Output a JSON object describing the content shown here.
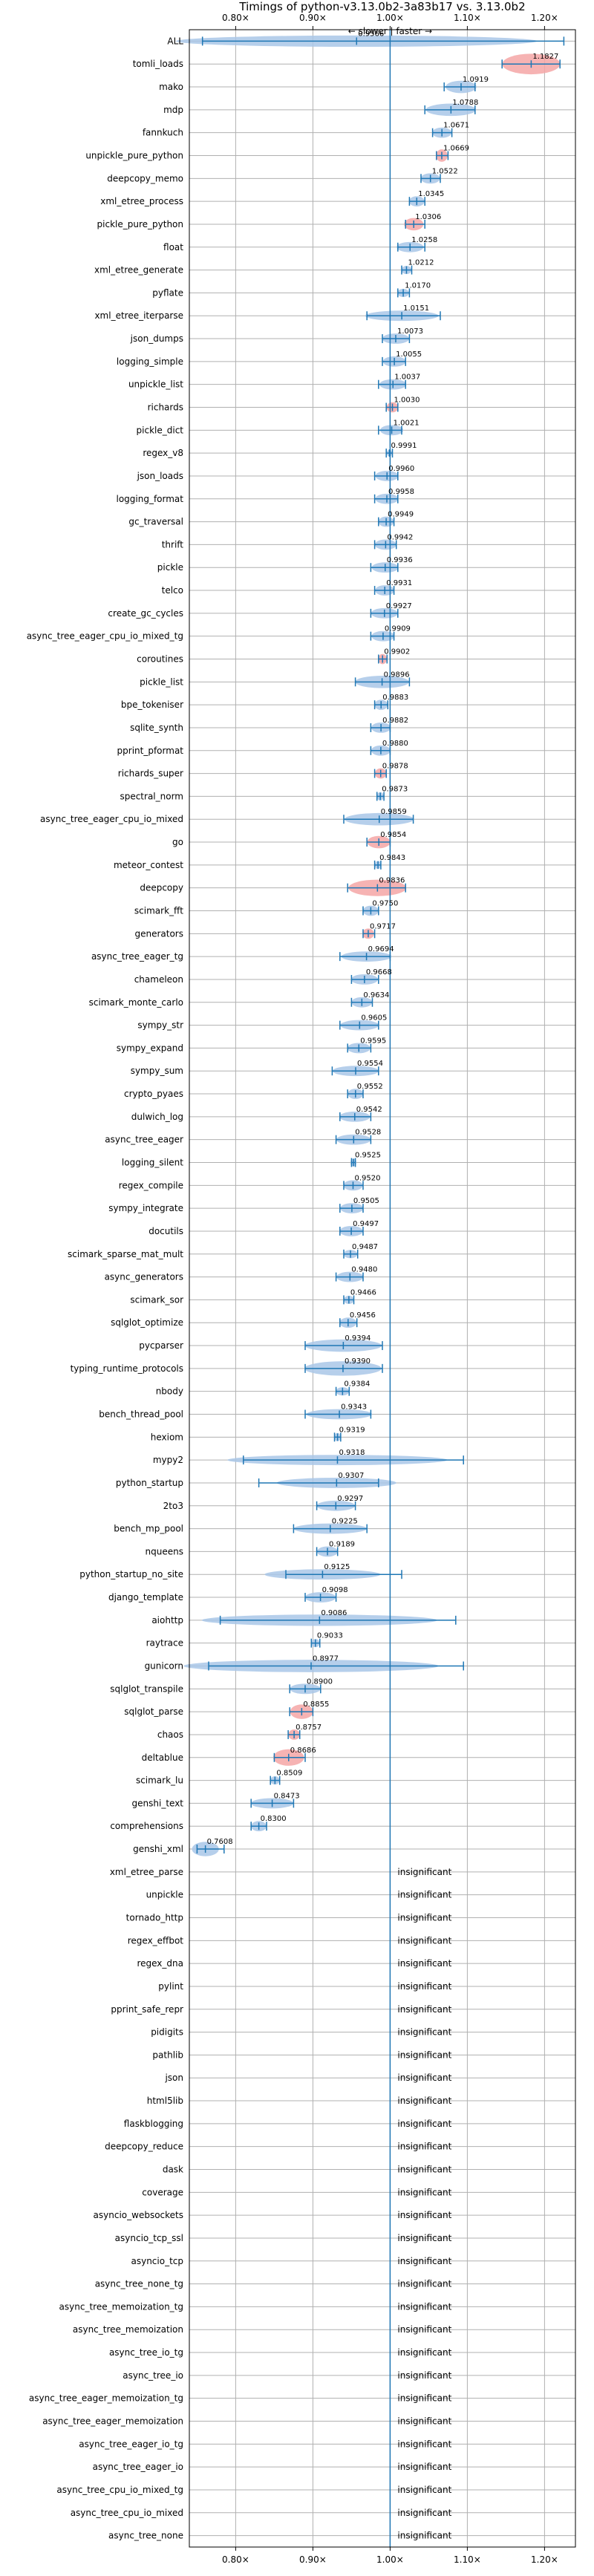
{
  "chart_data": {
    "type": "violin",
    "title": "Timings of python-v3.13.0b2-3a83b17 vs. 3.13.0b2",
    "direction_label": "← slower | faster →",
    "xlim": [
      0.74,
      1.24
    ],
    "xticks": [
      {
        "value": 0.8,
        "label": "0.80×"
      },
      {
        "value": 0.9,
        "label": "0.90×"
      },
      {
        "value": 1.0,
        "label": "1.00×"
      },
      {
        "value": 1.1,
        "label": "1.10×"
      },
      {
        "value": 1.2,
        "label": "1.20×"
      }
    ],
    "grid": true,
    "colors": {
      "faster": "#a9c7e8",
      "slower": "#f4a6a6",
      "errorbar": "#1f77b4",
      "refline": "#1f77b4",
      "grid": "#b0b0b0"
    },
    "insignificant_label": "insignificant",
    "rows": [
      {
        "name": "ALL",
        "value": 0.9566,
        "label": "0.9566",
        "lo": 0.757,
        "hi": 1.225,
        "w": 0.55,
        "slow": false
      },
      {
        "name": "tomli_loads",
        "value": 1.1827,
        "label": "1.1827",
        "lo": 1.145,
        "hi": 1.22,
        "w": 1.0,
        "slow": true
      },
      {
        "name": "mako",
        "value": 1.0919,
        "label": "1.0919",
        "lo": 1.07,
        "hi": 1.11,
        "w": 0.6,
        "slow": false
      },
      {
        "name": "mdp",
        "value": 1.0788,
        "label": "1.0788",
        "lo": 1.045,
        "hi": 1.11,
        "w": 0.6,
        "slow": false
      },
      {
        "name": "fannkuch",
        "value": 1.0671,
        "label": "1.0671",
        "lo": 1.055,
        "hi": 1.08,
        "w": 0.5,
        "slow": false
      },
      {
        "name": "unpickle_pure_python",
        "value": 1.0669,
        "label": "1.0669",
        "lo": 1.06,
        "hi": 1.075,
        "w": 0.6,
        "slow": true
      },
      {
        "name": "deepcopy_memo",
        "value": 1.0522,
        "label": "1.0522",
        "lo": 1.04,
        "hi": 1.065,
        "w": 0.5,
        "slow": false
      },
      {
        "name": "xml_etree_process",
        "value": 1.0345,
        "label": "1.0345",
        "lo": 1.025,
        "hi": 1.045,
        "w": 0.5,
        "slow": false
      },
      {
        "name": "pickle_pure_python",
        "value": 1.0306,
        "label": "1.0306",
        "lo": 1.02,
        "hi": 1.045,
        "w": 0.6,
        "slow": true
      },
      {
        "name": "float",
        "value": 1.0258,
        "label": "1.0258",
        "lo": 1.01,
        "hi": 1.045,
        "w": 0.5,
        "slow": false
      },
      {
        "name": "xml_etree_generate",
        "value": 1.0212,
        "label": "1.0212",
        "lo": 1.015,
        "hi": 1.028,
        "w": 0.4,
        "slow": false
      },
      {
        "name": "pyflate",
        "value": 1.017,
        "label": "1.0170",
        "lo": 1.01,
        "hi": 1.025,
        "w": 0.4,
        "slow": false
      },
      {
        "name": "xml_etree_iterparse",
        "value": 1.0151,
        "label": "1.0151",
        "lo": 0.97,
        "hi": 1.065,
        "w": 0.5,
        "slow": false
      },
      {
        "name": "json_dumps",
        "value": 1.0073,
        "label": "1.0073",
        "lo": 0.99,
        "hi": 1.025,
        "w": 0.5,
        "slow": false
      },
      {
        "name": "logging_simple",
        "value": 1.0055,
        "label": "1.0055",
        "lo": 0.99,
        "hi": 1.02,
        "w": 0.5,
        "slow": false
      },
      {
        "name": "unpickle_list",
        "value": 1.0037,
        "label": "1.0037",
        "lo": 0.985,
        "hi": 1.02,
        "w": 0.5,
        "slow": false
      },
      {
        "name": "richards",
        "value": 1.003,
        "label": "1.0030",
        "lo": 0.995,
        "hi": 1.01,
        "w": 0.5,
        "slow": true
      },
      {
        "name": "pickle_dict",
        "value": 1.0021,
        "label": "1.0021",
        "lo": 0.985,
        "hi": 1.015,
        "w": 0.5,
        "slow": false
      },
      {
        "name": "regex_v8",
        "value": 0.9991,
        "label": "0.9991",
        "lo": 0.995,
        "hi": 1.003,
        "w": 0.3,
        "slow": false
      },
      {
        "name": "json_loads",
        "value": 0.996,
        "label": "0.9960",
        "lo": 0.98,
        "hi": 1.01,
        "w": 0.5,
        "slow": false
      },
      {
        "name": "logging_format",
        "value": 0.9958,
        "label": "0.9958",
        "lo": 0.98,
        "hi": 1.01,
        "w": 0.5,
        "slow": false
      },
      {
        "name": "gc_traversal",
        "value": 0.9949,
        "label": "0.9949",
        "lo": 0.985,
        "hi": 1.005,
        "w": 0.5,
        "slow": false
      },
      {
        "name": "thrift",
        "value": 0.9942,
        "label": "0.9942",
        "lo": 0.98,
        "hi": 1.008,
        "w": 0.5,
        "slow": false
      },
      {
        "name": "pickle",
        "value": 0.9936,
        "label": "0.9936",
        "lo": 0.975,
        "hi": 1.01,
        "w": 0.5,
        "slow": false
      },
      {
        "name": "telco",
        "value": 0.9931,
        "label": "0.9931",
        "lo": 0.98,
        "hi": 1.005,
        "w": 0.5,
        "slow": false
      },
      {
        "name": "create_gc_cycles",
        "value": 0.9927,
        "label": "0.9927",
        "lo": 0.975,
        "hi": 1.01,
        "w": 0.5,
        "slow": false
      },
      {
        "name": "async_tree_eager_cpu_io_mixed_tg",
        "value": 0.9909,
        "label": "0.9909",
        "lo": 0.975,
        "hi": 1.005,
        "w": 0.5,
        "slow": false
      },
      {
        "name": "coroutines",
        "value": 0.9902,
        "label": "0.9902",
        "lo": 0.985,
        "hi": 0.996,
        "w": 0.5,
        "slow": true
      },
      {
        "name": "pickle_list",
        "value": 0.9896,
        "label": "0.9896",
        "lo": 0.955,
        "hi": 1.025,
        "w": 0.6,
        "slow": false
      },
      {
        "name": "bpe_tokeniser",
        "value": 0.9883,
        "label": "0.9883",
        "lo": 0.98,
        "hi": 0.997,
        "w": 0.5,
        "slow": false
      },
      {
        "name": "sqlite_synth",
        "value": 0.9882,
        "label": "0.9882",
        "lo": 0.975,
        "hi": 1.0,
        "w": 0.5,
        "slow": false
      },
      {
        "name": "pprint_pformat",
        "value": 0.988,
        "label": "0.9880",
        "lo": 0.975,
        "hi": 1.0,
        "w": 0.5,
        "slow": false
      },
      {
        "name": "richards_super",
        "value": 0.9878,
        "label": "0.9878",
        "lo": 0.98,
        "hi": 0.995,
        "w": 0.5,
        "slow": true
      },
      {
        "name": "spectral_norm",
        "value": 0.9873,
        "label": "0.9873",
        "lo": 0.983,
        "hi": 0.992,
        "w": 0.4,
        "slow": false
      },
      {
        "name": "async_tree_eager_cpu_io_mixed",
        "value": 0.9859,
        "label": "0.9859",
        "lo": 0.94,
        "hi": 1.03,
        "w": 0.6,
        "slow": false
      },
      {
        "name": "go",
        "value": 0.9854,
        "label": "0.9854",
        "lo": 0.97,
        "hi": 1.0,
        "w": 0.6,
        "slow": true
      },
      {
        "name": "meteor_contest",
        "value": 0.9843,
        "label": "0.9843",
        "lo": 0.98,
        "hi": 0.988,
        "w": 0.4,
        "slow": false
      },
      {
        "name": "deepcopy",
        "value": 0.9836,
        "label": "0.9836",
        "lo": 0.945,
        "hi": 1.02,
        "w": 0.8,
        "slow": true
      },
      {
        "name": "scimark_fft",
        "value": 0.975,
        "label": "0.9750",
        "lo": 0.965,
        "hi": 0.985,
        "w": 0.5,
        "slow": false
      },
      {
        "name": "generators",
        "value": 0.9717,
        "label": "0.9717",
        "lo": 0.965,
        "hi": 0.98,
        "w": 0.5,
        "slow": true
      },
      {
        "name": "async_tree_eager_tg",
        "value": 0.9694,
        "label": "0.9694",
        "lo": 0.935,
        "hi": 1.0,
        "w": 0.5,
        "slow": false
      },
      {
        "name": "chameleon",
        "value": 0.9668,
        "label": "0.9668",
        "lo": 0.95,
        "hi": 0.985,
        "w": 0.5,
        "slow": false
      },
      {
        "name": "scimark_monte_carlo",
        "value": 0.9634,
        "label": "0.9634",
        "lo": 0.95,
        "hi": 0.977,
        "w": 0.5,
        "slow": false
      },
      {
        "name": "sympy_str",
        "value": 0.9605,
        "label": "0.9605",
        "lo": 0.935,
        "hi": 0.985,
        "w": 0.5,
        "slow": false
      },
      {
        "name": "sympy_expand",
        "value": 0.9595,
        "label": "0.9595",
        "lo": 0.945,
        "hi": 0.975,
        "w": 0.5,
        "slow": false
      },
      {
        "name": "sympy_sum",
        "value": 0.9554,
        "label": "0.9554",
        "lo": 0.925,
        "hi": 0.985,
        "w": 0.5,
        "slow": false
      },
      {
        "name": "crypto_pyaes",
        "value": 0.9552,
        "label": "0.9552",
        "lo": 0.945,
        "hi": 0.965,
        "w": 0.5,
        "slow": false
      },
      {
        "name": "dulwich_log",
        "value": 0.9542,
        "label": "0.9542",
        "lo": 0.935,
        "hi": 0.975,
        "w": 0.5,
        "slow": false
      },
      {
        "name": "async_tree_eager",
        "value": 0.9528,
        "label": "0.9528",
        "lo": 0.93,
        "hi": 0.975,
        "w": 0.5,
        "slow": false
      },
      {
        "name": "logging_silent",
        "value": 0.9525,
        "label": "0.9525",
        "lo": 0.95,
        "hi": 0.955,
        "w": 0.4,
        "slow": false
      },
      {
        "name": "regex_compile",
        "value": 0.952,
        "label": "0.9520",
        "lo": 0.94,
        "hi": 0.965,
        "w": 0.5,
        "slow": false
      },
      {
        "name": "sympy_integrate",
        "value": 0.9505,
        "label": "0.9505",
        "lo": 0.935,
        "hi": 0.965,
        "w": 0.5,
        "slow": false
      },
      {
        "name": "docutils",
        "value": 0.9497,
        "label": "0.9497",
        "lo": 0.935,
        "hi": 0.965,
        "w": 0.5,
        "slow": false
      },
      {
        "name": "scimark_sparse_mat_mult",
        "value": 0.9487,
        "label": "0.9487",
        "lo": 0.94,
        "hi": 0.958,
        "w": 0.4,
        "slow": false
      },
      {
        "name": "async_generators",
        "value": 0.948,
        "label": "0.9480",
        "lo": 0.93,
        "hi": 0.965,
        "w": 0.5,
        "slow": false
      },
      {
        "name": "scimark_sor",
        "value": 0.9466,
        "label": "0.9466",
        "lo": 0.94,
        "hi": 0.953,
        "w": 0.4,
        "slow": false
      },
      {
        "name": "sqlglot_optimize",
        "value": 0.9456,
        "label": "0.9456",
        "lo": 0.935,
        "hi": 0.957,
        "w": 0.5,
        "slow": false
      },
      {
        "name": "pycparser",
        "value": 0.9394,
        "label": "0.9394",
        "lo": 0.89,
        "hi": 0.99,
        "w": 0.6,
        "slow": false
      },
      {
        "name": "typing_runtime_protocols",
        "value": 0.939,
        "label": "0.9390",
        "lo": 0.89,
        "hi": 0.99,
        "w": 0.7,
        "slow": false
      },
      {
        "name": "nbody",
        "value": 0.9384,
        "label": "0.9384",
        "lo": 0.93,
        "hi": 0.947,
        "w": 0.4,
        "slow": false
      },
      {
        "name": "bench_thread_pool",
        "value": 0.9343,
        "label": "0.9343",
        "lo": 0.89,
        "hi": 0.975,
        "w": 0.5,
        "slow": false
      },
      {
        "name": "hexiom",
        "value": 0.9319,
        "label": "0.9319",
        "lo": 0.928,
        "hi": 0.936,
        "w": 0.4,
        "slow": false
      },
      {
        "name": "mypy2",
        "value": 0.9318,
        "label": "0.9318",
        "lo": 0.81,
        "hi": 1.095,
        "w": 0.5,
        "slow": false
      },
      {
        "name": "python_startup",
        "value": 0.9307,
        "label": "0.9307",
        "lo": 0.83,
        "hi": 0.985,
        "w": 0.5,
        "slow": false
      },
      {
        "name": "2to3",
        "value": 0.9297,
        "label": "0.9297",
        "lo": 0.905,
        "hi": 0.955,
        "w": 0.5,
        "slow": false
      },
      {
        "name": "bench_mp_pool",
        "value": 0.9225,
        "label": "0.9225",
        "lo": 0.875,
        "hi": 0.97,
        "w": 0.5,
        "slow": false
      },
      {
        "name": "nqueens",
        "value": 0.9189,
        "label": "0.9189",
        "lo": 0.905,
        "hi": 0.932,
        "w": 0.5,
        "slow": false
      },
      {
        "name": "python_startup_no_site",
        "value": 0.9125,
        "label": "0.9125",
        "lo": 0.865,
        "hi": 1.015,
        "w": 0.5,
        "slow": false
      },
      {
        "name": "django_template",
        "value": 0.9098,
        "label": "0.9098",
        "lo": 0.89,
        "hi": 0.93,
        "w": 0.5,
        "slow": false
      },
      {
        "name": "aiohttp",
        "value": 0.9086,
        "label": "0.9086",
        "lo": 0.78,
        "hi": 1.085,
        "w": 0.55,
        "slow": false
      },
      {
        "name": "raytrace",
        "value": 0.9033,
        "label": "0.9033",
        "lo": 0.898,
        "hi": 0.909,
        "w": 0.4,
        "slow": false
      },
      {
        "name": "gunicorn",
        "value": 0.8977,
        "label": "0.8977",
        "lo": 0.765,
        "hi": 1.095,
        "w": 0.6,
        "slow": false
      },
      {
        "name": "sqlglot_transpile",
        "value": 0.89,
        "label": "0.8900",
        "lo": 0.87,
        "hi": 0.91,
        "w": 0.5,
        "slow": false
      },
      {
        "name": "sqlglot_parse",
        "value": 0.8855,
        "label": "0.8855",
        "lo": 0.87,
        "hi": 0.9,
        "w": 0.7,
        "slow": true
      },
      {
        "name": "chaos",
        "value": 0.8757,
        "label": "0.8757",
        "lo": 0.868,
        "hi": 0.883,
        "w": 0.5,
        "slow": true
      },
      {
        "name": "deltablue",
        "value": 0.8686,
        "label": "0.8686",
        "lo": 0.85,
        "hi": 0.89,
        "w": 0.8,
        "slow": true
      },
      {
        "name": "scimark_lu",
        "value": 0.8509,
        "label": "0.8509",
        "lo": 0.845,
        "hi": 0.857,
        "w": 0.4,
        "slow": false
      },
      {
        "name": "genshi_text",
        "value": 0.8473,
        "label": "0.8473",
        "lo": 0.82,
        "hi": 0.875,
        "w": 0.5,
        "slow": false
      },
      {
        "name": "comprehensions",
        "value": 0.83,
        "label": "0.8300",
        "lo": 0.82,
        "hi": 0.84,
        "w": 0.5,
        "slow": false
      },
      {
        "name": "genshi_xml",
        "value": 0.7608,
        "label": "0.7608",
        "lo": 0.75,
        "hi": 0.785,
        "w": 0.7,
        "slow": false
      },
      {
        "name": "xml_etree_parse",
        "insignificant": true
      },
      {
        "name": "unpickle",
        "insignificant": true
      },
      {
        "name": "tornado_http",
        "insignificant": true
      },
      {
        "name": "regex_effbot",
        "insignificant": true
      },
      {
        "name": "regex_dna",
        "insignificant": true
      },
      {
        "name": "pylint",
        "insignificant": true
      },
      {
        "name": "pprint_safe_repr",
        "insignificant": true
      },
      {
        "name": "pidigits",
        "insignificant": true
      },
      {
        "name": "pathlib",
        "insignificant": true
      },
      {
        "name": "json",
        "insignificant": true
      },
      {
        "name": "html5lib",
        "insignificant": true
      },
      {
        "name": "flaskblogging",
        "insignificant": true
      },
      {
        "name": "deepcopy_reduce",
        "insignificant": true
      },
      {
        "name": "dask",
        "insignificant": true
      },
      {
        "name": "coverage",
        "insignificant": true
      },
      {
        "name": "asyncio_websockets",
        "insignificant": true
      },
      {
        "name": "asyncio_tcp_ssl",
        "insignificant": true
      },
      {
        "name": "asyncio_tcp",
        "insignificant": true
      },
      {
        "name": "async_tree_none_tg",
        "insignificant": true
      },
      {
        "name": "async_tree_memoization_tg",
        "insignificant": true
      },
      {
        "name": "async_tree_memoization",
        "insignificant": true
      },
      {
        "name": "async_tree_io_tg",
        "insignificant": true
      },
      {
        "name": "async_tree_io",
        "insignificant": true
      },
      {
        "name": "async_tree_eager_memoization_tg",
        "insignificant": true
      },
      {
        "name": "async_tree_eager_memoization",
        "insignificant": true
      },
      {
        "name": "async_tree_eager_io_tg",
        "insignificant": true
      },
      {
        "name": "async_tree_eager_io",
        "insignificant": true
      },
      {
        "name": "async_tree_cpu_io_mixed_tg",
        "insignificant": true
      },
      {
        "name": "async_tree_cpu_io_mixed",
        "insignificant": true
      },
      {
        "name": "async_tree_none",
        "insignificant": true
      }
    ]
  }
}
